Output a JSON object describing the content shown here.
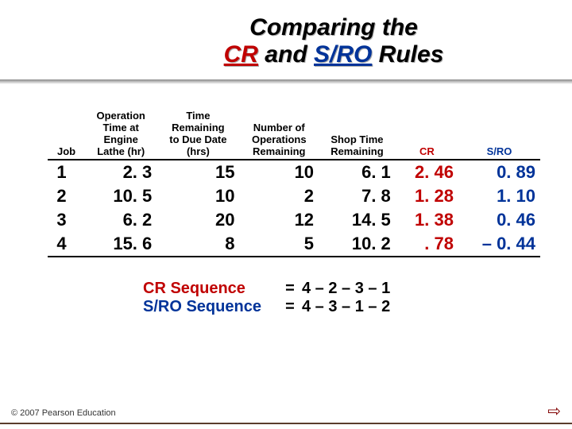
{
  "slide": {
    "title_line1": "Comparing the",
    "title_line2_pre": "",
    "cr_word": "CR",
    "and_word": " and ",
    "sro_word": "S/RO",
    "rules_word": " Rules"
  },
  "table": {
    "headers": {
      "job": "Job",
      "op_time": "Operation Time at Engine Lathe (hr)",
      "time_remain": "Time Remaining to Due Date (hrs)",
      "num_ops": "Number of Operations Remaining",
      "shop_time": "Shop Time Remaining",
      "cr": "CR",
      "sro": "S/RO"
    },
    "rows": [
      {
        "job": "1",
        "op": "2. 3",
        "time": "15",
        "ops": "10",
        "shop": "6. 1",
        "cr": "2. 46",
        "sro": "0. 89"
      },
      {
        "job": "2",
        "op": "10. 5",
        "time": "10",
        "ops": "2",
        "shop": "7. 8",
        "cr": "1. 28",
        "sro": "1. 10"
      },
      {
        "job": "3",
        "op": "6. 2",
        "time": "20",
        "ops": "12",
        "shop": "14. 5",
        "cr": "1. 38",
        "sro": "0. 46"
      },
      {
        "job": "4",
        "op": "15. 6",
        "time": "8",
        "ops": "5",
        "shop": "10. 2",
        "cr": ". 78",
        "sro": "– 0. 44"
      }
    ]
  },
  "sequences": {
    "cr_label": "CR Sequence",
    "cr_value": "4 – 2 – 3 – 1",
    "sro_label": "S/RO Sequence",
    "sro_value": "4 – 3 – 1 – 2",
    "eq": "="
  },
  "footer": "© 2007 Pearson Education",
  "arrow": "⇨"
}
